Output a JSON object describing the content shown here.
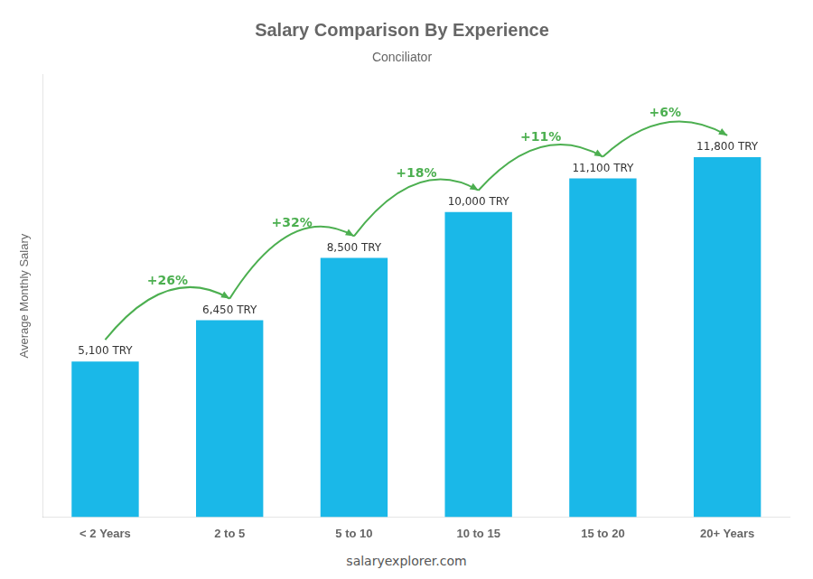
{
  "chart_data": {
    "type": "bar",
    "title": "Salary Comparison By Experience",
    "subtitle": "Conciliator",
    "categories": [
      "< 2 Years",
      "2 to 5",
      "5 to 10",
      "10 to 15",
      "15 to 20",
      "20+ Years"
    ],
    "values": [
      5100,
      6450,
      8500,
      10000,
      11100,
      11800
    ],
    "value_labels": [
      "5,100 TRY",
      "6,450 TRY",
      "8,500 TRY",
      "10,000 TRY",
      "11,100 TRY",
      "11,800 TRY"
    ],
    "data_labels": true,
    "color": "#1ab8e8",
    "ylabel": "Average Monthly Salary",
    "ylim": [
      0,
      14500
    ],
    "tick_labels": "x",
    "grid": false,
    "annotations": [
      "+26%",
      "+32%",
      "+18%",
      "+11%",
      "+6%"
    ],
    "footer": "salaryexplorer.com"
  }
}
